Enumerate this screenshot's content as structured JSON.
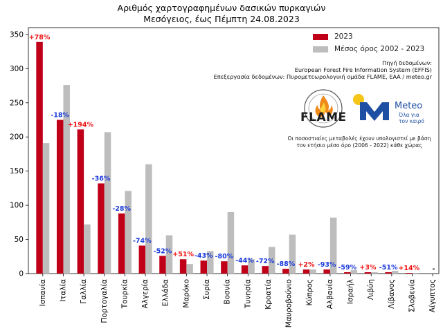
{
  "title_line1": "Αριθμός χαρτογραφημένων δασικών πυρκαγιών",
  "title_line2": "Μεσόγειος, έως Πέμπτη 24.08.2023",
  "legend": {
    "series_2023": "2023",
    "series_avg": "Μέσος όρος 2002 - 2023"
  },
  "source": {
    "line1": "Πηγή δεδομένων:",
    "line2": "European Forest Fire Information System (EFFIS)",
    "line3": "Επεξεργασία δεδομένων: Πυρομετεωρολογική ομάδα FLAME, ΕΑΑ / meteo.gr"
  },
  "note": {
    "line1": "Οι ποσοστιαίες μεταβολές έχουν υπολογιστεί με βάση",
    "line2": "τον ετήσιο μέσο όρο (2006 - 2022) κάθε χώρας"
  },
  "logos": {
    "flame_text": "FLAME",
    "meteo_text": "Meteo",
    "meteo_tagline1": "Όλα για",
    "meteo_tagline2": "τον καιρό"
  },
  "colors": {
    "series_2023": "#c00018",
    "series_avg": "#bdbdbd",
    "label_increase": "#ee1111",
    "label_decrease": "#1a3adb",
    "label_none": "#000000",
    "meteo_blue": "#1d4fa3",
    "meteo_sun": "#f5c518"
  },
  "chart_data": {
    "type": "bar",
    "categories": [
      "Ισπανία",
      "Ιταλία",
      "Γαλλία",
      "Πορτογαλία",
      "Τουρκία",
      "Αλγερία",
      "Ελλάδα",
      "Μαρόκο",
      "Συρία",
      "Βοσνία",
      "Τυνησία",
      "Κροατία",
      "Μαυροβούνιο",
      "Κύπρος",
      "Αλβανία",
      "Ισραήλ",
      "Λιβύη",
      "Λίβανος",
      "Σλοβενία",
      "Αίγυπτος"
    ],
    "series": [
      {
        "name": "2023",
        "values": [
          339,
          225,
          211,
          132,
          88,
          41,
          26,
          21,
          19,
          18,
          12,
          11,
          7,
          6,
          6,
          2,
          2,
          2,
          1,
          0
        ]
      },
      {
        "name": "Μέσος όρος 2002 - 2023",
        "values": [
          191,
          276,
          72,
          207,
          121,
          160,
          56,
          14,
          33,
          90,
          21,
          39,
          57,
          6,
          82,
          5,
          2,
          4,
          1,
          0
        ]
      }
    ],
    "change_labels": [
      "+78%",
      "-18%",
      "+194%",
      "-36%",
      "-28%",
      "-74%",
      "-52%",
      "+51%",
      "-43%",
      "-80%",
      "-44%",
      "-72%",
      "-88%",
      "+2%",
      "-93%",
      "-59%",
      "+3%",
      "-51%",
      "+14%",
      "-"
    ],
    "change_direction": [
      "up",
      "down",
      "up",
      "down",
      "down",
      "down",
      "down",
      "up",
      "down",
      "down",
      "down",
      "down",
      "down",
      "up",
      "down",
      "down",
      "up",
      "down",
      "up",
      "none"
    ],
    "ylim": [
      0,
      360
    ],
    "yticks": [
      0,
      50,
      100,
      150,
      200,
      250,
      300,
      350
    ],
    "xlabel": "",
    "ylabel": "",
    "legend_position": "top-right",
    "grid": false
  }
}
